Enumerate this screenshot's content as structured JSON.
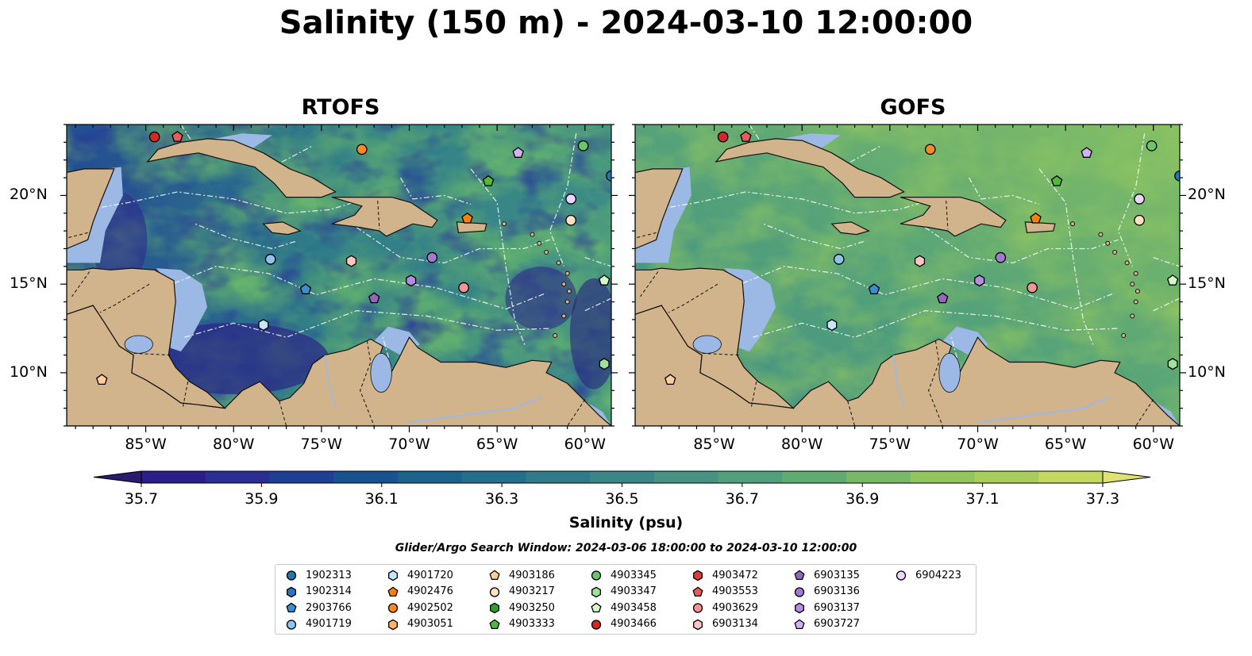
{
  "title": "Salinity (150 m) - 2024-03-10 12:00:00",
  "panels": [
    {
      "id": "rtofs",
      "title": "RTOFS"
    },
    {
      "id": "gofs",
      "title": "GOFS"
    }
  ],
  "axes": {
    "lon_ticks": [
      "85°W",
      "80°W",
      "75°W",
      "70°W",
      "65°W",
      "60°W"
    ],
    "lat_ticks": [
      "20°N",
      "15°N",
      "10°N"
    ],
    "lon_values": [
      -85,
      -80,
      -75,
      -70,
      -65,
      -60
    ],
    "lat_values": [
      20,
      15,
      10
    ],
    "lon_range": [
      -89.5,
      -58.5
    ],
    "lat_range": [
      7,
      24
    ]
  },
  "colorbar": {
    "label": "Salinity (psu)",
    "ticks": [
      "35.7",
      "35.9",
      "36.1",
      "36.3",
      "36.5",
      "36.7",
      "36.9",
      "37.1",
      "37.3"
    ],
    "min": 35.6,
    "max": 37.4,
    "extend": "both",
    "colormap": "haline",
    "colors": [
      "#2a1b6e",
      "#2b1e8a",
      "#2a2e95",
      "#1f3f95",
      "#1a5291",
      "#1b638d",
      "#246f8b",
      "#2f7b89",
      "#3a8787",
      "#469384",
      "#51a07d",
      "#60ab72",
      "#78b968",
      "#93c55f",
      "#a9cd5a",
      "#c4d861",
      "#dde273"
    ]
  },
  "search_window": "Glider/Argo Search Window: 2024-03-06 18:00:00 to 2024-03-10 12:00:00",
  "legend": [
    {
      "id": "1902313",
      "marker": "circle",
      "color": "#1f77b4"
    },
    {
      "id": "1902314",
      "marker": "hexagon",
      "color": "#2f74b8"
    },
    {
      "id": "2903766",
      "marker": "pentagon",
      "color": "#3a8fd0"
    },
    {
      "id": "4901719",
      "marker": "circle",
      "color": "#8fc3ee"
    },
    {
      "id": "4901720",
      "marker": "hexagon",
      "color": "#c6e6fb"
    },
    {
      "id": "4902476",
      "marker": "pentagon",
      "color": "#ff7f0e"
    },
    {
      "id": "4902502",
      "marker": "circle",
      "color": "#f58a2a"
    },
    {
      "id": "4903051",
      "marker": "hexagon",
      "color": "#ffb36b"
    },
    {
      "id": "4903186",
      "marker": "pentagon",
      "color": "#ffcf99"
    },
    {
      "id": "4903217",
      "marker": "circle",
      "color": "#ffe2c2"
    },
    {
      "id": "4903250",
      "marker": "hexagon",
      "color": "#2ca02c"
    },
    {
      "id": "4903333",
      "marker": "pentagon",
      "color": "#4fba3f"
    },
    {
      "id": "4903345",
      "marker": "circle",
      "color": "#6cc56c"
    },
    {
      "id": "4903347",
      "marker": "hexagon",
      "color": "#a1e09a"
    },
    {
      "id": "4903458",
      "marker": "pentagon",
      "color": "#d2f7c8"
    },
    {
      "id": "4903466",
      "marker": "circle",
      "color": "#d62728"
    },
    {
      "id": "4903472",
      "marker": "hexagon",
      "color": "#de3a3b"
    },
    {
      "id": "4903553",
      "marker": "pentagon",
      "color": "#e85c5c"
    },
    {
      "id": "4903629",
      "marker": "circle",
      "color": "#f59494"
    },
    {
      "id": "6903134",
      "marker": "hexagon",
      "color": "#fbc6c6"
    },
    {
      "id": "6903135",
      "marker": "pentagon",
      "color": "#9467bd"
    },
    {
      "id": "6903136",
      "marker": "circle",
      "color": "#a27bcc"
    },
    {
      "id": "6903137",
      "marker": "hexagon",
      "color": "#b48ce0"
    },
    {
      "id": "6903727",
      "marker": "pentagon",
      "color": "#d2b2f2"
    },
    {
      "id": "6904223",
      "marker": "circle",
      "color": "#ecd6fb"
    }
  ],
  "floats": [
    {
      "id": "4903466",
      "lon": -84.5,
      "lat": 23.3
    },
    {
      "id": "4903553",
      "lon": -83.2,
      "lat": 23.3
    },
    {
      "id": "4902502",
      "lon": -72.7,
      "lat": 22.6
    },
    {
      "id": "6903727",
      "lon": -63.8,
      "lat": 22.4
    },
    {
      "id": "4903345",
      "lon": -60.1,
      "lat": 22.8
    },
    {
      "id": "1902313",
      "lon": -58.5,
      "lat": 21.1
    },
    {
      "id": "4903333",
      "lon": -65.5,
      "lat": 20.8
    },
    {
      "id": "6904223",
      "lon": -60.8,
      "lat": 19.8
    },
    {
      "id": "4903217",
      "lon": -60.8,
      "lat": 18.6
    },
    {
      "id": "4902476",
      "lon": -66.7,
      "lat": 18.7
    },
    {
      "id": "4901719",
      "lon": -77.9,
      "lat": 16.4
    },
    {
      "id": "6903134",
      "lon": -73.3,
      "lat": 16.3
    },
    {
      "id": "6903136",
      "lon": -68.7,
      "lat": 16.5
    },
    {
      "id": "6903137",
      "lon": -69.9,
      "lat": 15.2
    },
    {
      "id": "4903629",
      "lon": -66.9,
      "lat": 14.8
    },
    {
      "id": "4903458",
      "lon": -58.9,
      "lat": 15.2
    },
    {
      "id": "2903766",
      "lon": -75.9,
      "lat": 14.7
    },
    {
      "id": "6903135",
      "lon": -72.0,
      "lat": 14.2
    },
    {
      "id": "4901720",
      "lon": -78.3,
      "lat": 12.7
    },
    {
      "id": "4903186",
      "lon": -87.5,
      "lat": 9.6
    },
    {
      "id": "4903347",
      "lon": -58.9,
      "lat": 10.5
    }
  ]
}
